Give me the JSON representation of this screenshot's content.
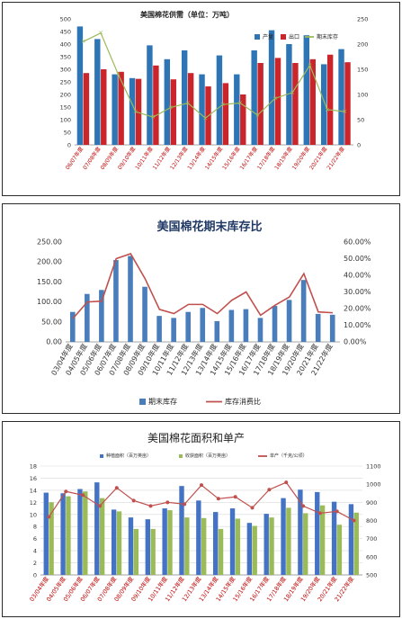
{
  "chart_data": [
    {
      "type": "bar",
      "title": "美国棉花供需（单位：万吨）",
      "categories": [
        "06/07年度",
        "07/08年度",
        "08/09年度",
        "09/10年度",
        "10/11年度",
        "11/12年度",
        "12/13年度",
        "13/14年度",
        "14/15年度",
        "15/16年度",
        "16/17年度",
        "17/18年度",
        "18/19年度",
        "19/20年度",
        "20/21年度",
        "21/22年度"
      ],
      "series": [
        {
          "name": "产量",
          "kind": "bar",
          "axis": "left",
          "color": "#2e75b6",
          "values": [
            470,
            420,
            280,
            265,
            395,
            340,
            375,
            280,
            355,
            280,
            375,
            455,
            400,
            435,
            320,
            380
          ]
        },
        {
          "name": "出口",
          "kind": "bar",
          "axis": "left",
          "color": "#c9252b",
          "values": [
            285,
            300,
            290,
            262,
            315,
            260,
            285,
            232,
            245,
            200,
            325,
            345,
            325,
            340,
            358,
            328
          ]
        },
        {
          "name": "期末库存",
          "kind": "line",
          "axis": "right",
          "color": "#9bbb59",
          "values": [
            205,
            222,
            140,
            66,
            55,
            74,
            83,
            53,
            80,
            83,
            59,
            92,
            104,
            158,
            70,
            66
          ]
        }
      ],
      "ylim": [
        0,
        500
      ],
      "yticks": [
        0,
        50,
        100,
        150,
        200,
        250,
        300,
        350,
        400,
        450,
        500
      ],
      "y2lim": [
        0,
        250
      ],
      "y2ticks": [
        0,
        50,
        100,
        150,
        200,
        250
      ],
      "legend": "top-right"
    },
    {
      "type": "bar",
      "title": "美国棉花期末库存比",
      "categories": [
        "03/04年度",
        "04/05年度",
        "05/06年度",
        "06/07年度",
        "07/08年度",
        "08/09年度",
        "09/10年度",
        "10/11年度",
        "11/12年度",
        "12/13年度",
        "13/14年度",
        "14/15年度",
        "15/16年度",
        "16/17年度",
        "17/18年度",
        "18/19年度",
        "19/20年度",
        "20/21年度",
        "21/22年度"
      ],
      "series": [
        {
          "name": "期末库存",
          "kind": "bar",
          "axis": "left",
          "color": "#4a7ebb",
          "values": [
            75,
            120,
            130,
            205,
            215,
            138,
            65,
            60,
            75,
            85,
            52,
            80,
            82,
            60,
            90,
            105,
            155,
            70,
            68
          ]
        },
        {
          "name": "库存消费比",
          "kind": "line",
          "axis": "right",
          "color": "#c0504d",
          "values": [
            0.14,
            0.24,
            0.245,
            0.5,
            0.53,
            0.38,
            0.195,
            0.17,
            0.225,
            0.225,
            0.17,
            0.25,
            0.3,
            0.16,
            0.22,
            0.27,
            0.41,
            0.18,
            0.175
          ]
        }
      ],
      "ylim": [
        0,
        250
      ],
      "yticks": [
        "0.00",
        "50.00",
        "100.00",
        "150.00",
        "200.00",
        "250.00"
      ],
      "y2lim": [
        0,
        0.6
      ],
      "y2ticks": [
        "0.00%",
        "10.00%",
        "20.00%",
        "30.00%",
        "40.00%",
        "50.00%",
        "60.00%"
      ],
      "legend": "bottom"
    },
    {
      "type": "bar",
      "title": "美国棉花面积和单产",
      "categories": [
        "03/04年度",
        "04/05年度",
        "05/06年度",
        "06/07年度",
        "07/08年度",
        "08/09年度",
        "09/10年度",
        "10/11年度",
        "11/12年度",
        "12/13年度",
        "13/14年度",
        "14/15年度",
        "15/16年度",
        "16/17年度",
        "17/18年度",
        "18/19年度",
        "19/20年度",
        "20/21年度",
        "21/22年度"
      ],
      "series": [
        {
          "name": "种植面积（百万英亩）",
          "kind": "bar",
          "axis": "left",
          "color": "#4472c4",
          "values": [
            13.6,
            13.5,
            14.2,
            15.3,
            10.8,
            9.5,
            9.2,
            11.0,
            14.7,
            12.3,
            10.4,
            11.0,
            8.6,
            10.1,
            12.7,
            14.1,
            13.7,
            12.1,
            11.7
          ]
        },
        {
          "name": "收获面积（百万英亩）",
          "kind": "bar",
          "axis": "left",
          "color": "#9bbb59",
          "values": [
            12.0,
            13.0,
            13.8,
            12.7,
            10.5,
            7.6,
            7.6,
            10.7,
            9.5,
            9.4,
            7.6,
            9.3,
            8.1,
            9.5,
            11.1,
            10.2,
            11.5,
            8.3,
            10.3
          ]
        },
        {
          "name": "单产（千克/公顷）",
          "kind": "line",
          "axis": "right",
          "color": "#c0504d",
          "values": [
            820,
            960,
            940,
            880,
            980,
            910,
            880,
            900,
            890,
            995,
            920,
            930,
            870,
            970,
            1010,
            880,
            840,
            850,
            800
          ]
        }
      ],
      "ylim": [
        0,
        18
      ],
      "yticks": [
        0,
        2,
        4,
        6,
        8,
        10,
        12,
        14,
        16,
        18
      ],
      "y2lim": [
        500,
        1100
      ],
      "y2ticks": [
        500,
        600,
        700,
        800,
        900,
        1000,
        1100
      ],
      "legend": "top"
    }
  ]
}
